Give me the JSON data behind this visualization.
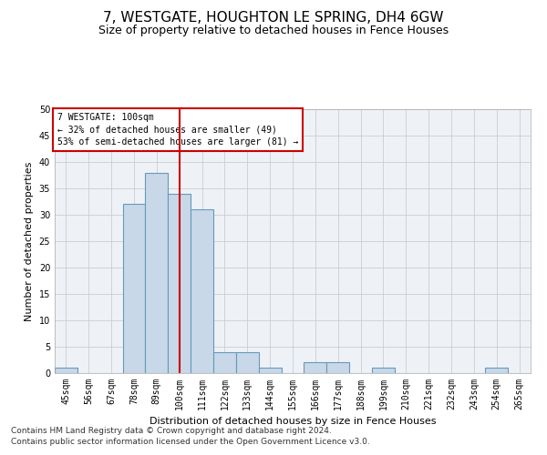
{
  "title": "7, WESTGATE, HOUGHTON LE SPRING, DH4 6GW",
  "subtitle": "Size of property relative to detached houses in Fence Houses",
  "xlabel": "Distribution of detached houses by size in Fence Houses",
  "ylabel": "Number of detached properties",
  "footnote1": "Contains HM Land Registry data © Crown copyright and database right 2024.",
  "footnote2": "Contains public sector information licensed under the Open Government Licence v3.0.",
  "bin_labels": [
    "45sqm",
    "56sqm",
    "67sqm",
    "78sqm",
    "89sqm",
    "100sqm",
    "111sqm",
    "122sqm",
    "133sqm",
    "144sqm",
    "155sqm",
    "166sqm",
    "177sqm",
    "188sqm",
    "199sqm",
    "210sqm",
    "221sqm",
    "232sqm",
    "243sqm",
    "254sqm",
    "265sqm"
  ],
  "bar_values": [
    1,
    0,
    0,
    32,
    38,
    34,
    31,
    4,
    4,
    1,
    0,
    2,
    2,
    0,
    1,
    0,
    0,
    0,
    0,
    1,
    0
  ],
  "bar_color": "#c8d8e8",
  "bar_edge_color": "#6699bb",
  "bar_edge_width": 0.8,
  "vline_x": 5,
  "vline_color": "#cc0000",
  "ylim": [
    0,
    50
  ],
  "yticks": [
    0,
    5,
    10,
    15,
    20,
    25,
    30,
    35,
    40,
    45,
    50
  ],
  "annotation_box_text": "7 WESTGATE: 100sqm\n← 32% of detached houses are smaller (49)\n53% of semi-detached houses are larger (81) →",
  "grid_color": "#cccccc",
  "bg_color": "#eef2f7",
  "title_fontsize": 11,
  "subtitle_fontsize": 9,
  "axis_fontsize": 8,
  "tick_fontsize": 7,
  "footnote_fontsize": 6.5
}
